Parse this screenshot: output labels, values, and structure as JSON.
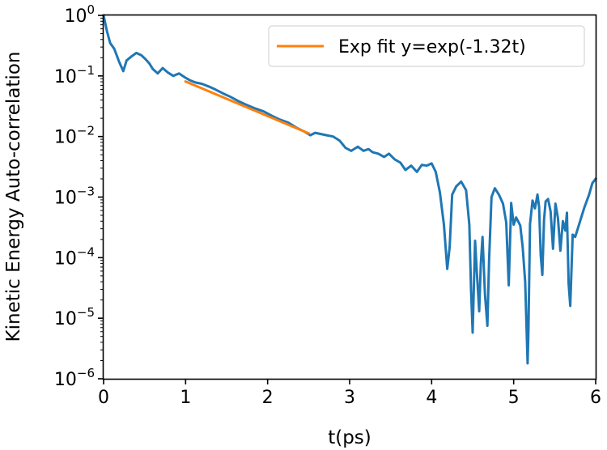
{
  "chart_data": {
    "type": "line",
    "xlabel": "t(ps)",
    "ylabel": "Kinetic Energy Auto-correlation",
    "xlim": [
      0,
      6
    ],
    "ylim": [
      1e-06,
      1
    ],
    "yscale": "log",
    "grid": false,
    "legend_position": "top-right",
    "x_ticks": [
      {
        "value": 0,
        "label": "0"
      },
      {
        "value": 1,
        "label": "1"
      },
      {
        "value": 2,
        "label": "2"
      },
      {
        "value": 3,
        "label": "3"
      },
      {
        "value": 4,
        "label": "4"
      },
      {
        "value": 5,
        "label": "5"
      },
      {
        "value": 6,
        "label": "6"
      }
    ],
    "y_ticks": [
      {
        "value": 1,
        "base": "10",
        "exp": "0"
      },
      {
        "value": 0.1,
        "base": "10",
        "exp": "−1"
      },
      {
        "value": 0.01,
        "base": "10",
        "exp": "−2"
      },
      {
        "value": 0.001,
        "base": "10",
        "exp": "−3"
      },
      {
        "value": 0.0001,
        "base": "10",
        "exp": "−4"
      },
      {
        "value": 1e-05,
        "base": "10",
        "exp": "−5"
      },
      {
        "value": 1e-06,
        "base": "10",
        "exp": "−6"
      }
    ],
    "series": [
      {
        "color": "#1f77b4",
        "x": [
          0.0,
          0.04,
          0.08,
          0.13,
          0.19,
          0.24,
          0.28,
          0.34,
          0.4,
          0.46,
          0.51,
          0.56,
          0.6,
          0.66,
          0.72,
          0.78,
          0.85,
          0.92,
          0.99,
          1.05,
          1.12,
          1.2,
          1.28,
          1.36,
          1.45,
          1.55,
          1.65,
          1.75,
          1.85,
          1.95,
          2.05,
          2.15,
          2.25,
          2.35,
          2.45,
          2.52,
          2.58,
          2.65,
          2.72,
          2.8,
          2.88,
          2.95,
          3.02,
          3.1,
          3.17,
          3.23,
          3.28,
          3.35,
          3.42,
          3.48,
          3.55,
          3.62,
          3.68,
          3.75,
          3.82,
          3.88,
          3.94,
          4.0,
          4.05,
          4.1,
          4.15,
          4.19,
          4.22,
          4.25,
          4.3,
          4.36,
          4.42,
          4.46,
          4.48,
          4.5,
          4.53,
          4.55,
          4.58,
          4.6,
          4.62,
          4.65,
          4.68,
          4.7,
          4.73,
          4.77,
          4.82,
          4.87,
          4.91,
          4.94,
          4.97,
          5.0,
          5.03,
          5.05,
          5.08,
          5.11,
          5.14,
          5.17,
          5.18,
          5.2,
          5.23,
          5.26,
          5.29,
          5.31,
          5.33,
          5.35,
          5.37,
          5.39,
          5.42,
          5.45,
          5.48,
          5.51,
          5.54,
          5.57,
          5.6,
          5.63,
          5.65,
          5.67,
          5.69,
          5.72,
          5.75,
          5.8,
          5.86,
          5.92,
          5.96,
          6.0
        ],
        "y": [
          1.0,
          0.55,
          0.35,
          0.28,
          0.17,
          0.12,
          0.18,
          0.21,
          0.24,
          0.22,
          0.19,
          0.16,
          0.13,
          0.11,
          0.135,
          0.115,
          0.1,
          0.11,
          0.095,
          0.085,
          0.078,
          0.074,
          0.067,
          0.06,
          0.052,
          0.045,
          0.038,
          0.033,
          0.029,
          0.026,
          0.022,
          0.019,
          0.017,
          0.014,
          0.012,
          0.0105,
          0.0115,
          0.011,
          0.0105,
          0.01,
          0.0085,
          0.0065,
          0.0058,
          0.0068,
          0.0058,
          0.0062,
          0.0055,
          0.0052,
          0.0046,
          0.0052,
          0.0042,
          0.0037,
          0.0028,
          0.0033,
          0.0026,
          0.0034,
          0.0033,
          0.0036,
          0.0026,
          0.0012,
          0.00035,
          6.5e-05,
          0.00015,
          0.0011,
          0.0015,
          0.0018,
          0.0013,
          0.00035,
          3e-05,
          5.8e-06,
          0.00019,
          6e-05,
          1.3e-05,
          8e-05,
          0.00022,
          2.5e-05,
          7.5e-06,
          9e-05,
          0.001,
          0.0014,
          0.0011,
          0.00078,
          0.00038,
          3.5e-05,
          0.0008,
          0.00035,
          0.00046,
          0.00041,
          0.00034,
          0.00015,
          4e-05,
          1.8e-06,
          6e-06,
          0.00036,
          0.00088,
          0.00065,
          0.0011,
          0.00069,
          0.00011,
          5.2e-05,
          0.00042,
          0.00085,
          0.00093,
          0.00058,
          0.00014,
          0.00078,
          0.00045,
          0.00013,
          0.0004,
          0.00028,
          0.00055,
          3.7e-05,
          1.6e-05,
          0.00024,
          0.00022,
          0.00036,
          0.00066,
          0.0011,
          0.0017,
          0.002
        ]
      },
      {
        "name": "Exp fit y=exp(-1.32t)",
        "color": "#ff7f0e",
        "x": [
          1.0,
          2.5
        ],
        "y": [
          0.081,
          0.0113
        ]
      }
    ]
  }
}
